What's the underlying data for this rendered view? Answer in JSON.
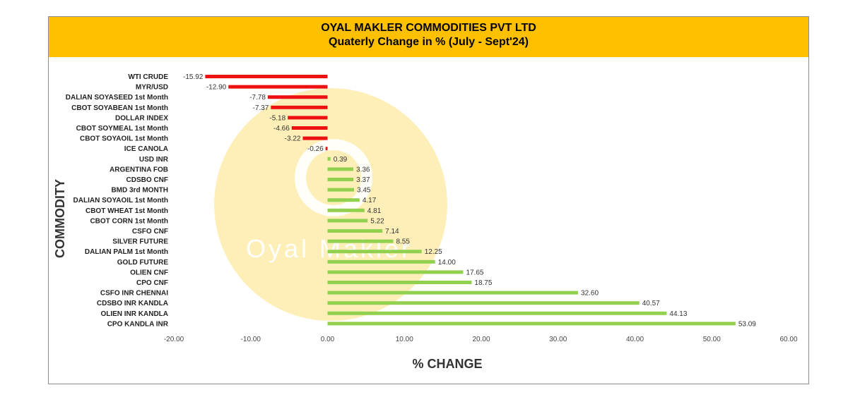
{
  "header": {
    "company": "OYAL MAKLER COMMODITIES PVT LTD",
    "subtitle": "Quaterly Change in %  (July - Sept'24)"
  },
  "watermark": {
    "text": "Oyal Makler"
  },
  "colors": {
    "header_bg": "#ffc000",
    "negative": "#ee1111",
    "positive": "#92d050",
    "watermark": "#fde9a0"
  },
  "chart_data": {
    "type": "bar",
    "orientation": "horizontal",
    "title": "OYAL MAKLER COMMODITIES PVT LTD",
    "subtitle": "Quaterly Change in %  (July - Sept'24)",
    "xlabel": "% CHANGE",
    "ylabel": "COMMODITY",
    "xlim": [
      -20,
      60
    ],
    "xticks": [
      "-20.00",
      "-10.00",
      "0.00",
      "10.00",
      "20.00",
      "30.00",
      "40.00",
      "50.00",
      "60.00"
    ],
    "grid": false,
    "legend": "none",
    "categories": [
      "WTI CRUDE",
      "MYR/USD",
      "DALIAN SOYASEED 1st Month",
      "CBOT SOYABEAN 1st Month",
      "DOLLAR INDEX",
      "CBOT SOYMEAL 1st Month",
      "CBOT SOYAOIL 1st Month",
      "ICE CANOLA",
      "USD INR",
      "ARGENTINA FOB",
      "CDSBO CNF",
      "BMD 3rd MONTH",
      "DALIAN SOYAOIL 1st Month",
      "CBOT WHEAT 1st Month",
      "CBOT CORN 1st Month",
      "CSFO CNF",
      "SILVER FUTURE",
      "DALIAN PALM 1st Month",
      "GOLD FUTURE",
      "OLIEN CNF",
      "CPO CNF",
      "CSFO INR CHENNAI",
      "CDSBO INR KANDLA",
      "OLIEN INR KANDLA",
      "CPO KANDLA INR"
    ],
    "values": [
      -15.92,
      -12.9,
      -7.78,
      -7.37,
      -5.18,
      -4.66,
      -3.22,
      -0.26,
      0.39,
      3.36,
      3.37,
      3.45,
      4.17,
      4.81,
      5.22,
      7.14,
      8.55,
      12.25,
      14.0,
      17.65,
      18.75,
      32.6,
      40.57,
      44.13,
      53.09
    ],
    "data_labels": [
      "-15.92",
      "-12.90",
      "-7.78",
      "-7.37",
      "-5.18",
      "-4.66",
      "-3.22",
      "-0.26",
      "0.39",
      "3.36",
      "3.37",
      "3.45",
      "4.17",
      "4.81",
      "5.22",
      "7.14",
      "8.55",
      "12.25",
      "14.00",
      "17.65",
      "18.75",
      "32.60",
      "40.57",
      "44.13",
      "53.09"
    ]
  }
}
